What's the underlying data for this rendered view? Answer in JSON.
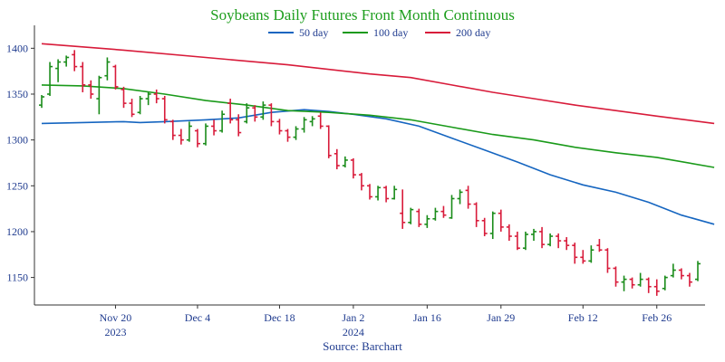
{
  "chart_data": {
    "type": "ohlc",
    "title": "Soybeans Daily Futures Front Month Continuous",
    "source": "Source: Barchart",
    "ylim": [
      1120,
      1425
    ],
    "yticks": [
      1150,
      1200,
      1250,
      1300,
      1350,
      1400
    ],
    "grid": false,
    "legend_position": "top-center",
    "x_ticks": [
      {
        "label": "Nov 20",
        "sub": "2023",
        "index": 9
      },
      {
        "label": "Dec 4",
        "sub": "",
        "index": 19
      },
      {
        "label": "Dec 18",
        "sub": "",
        "index": 29
      },
      {
        "label": "Jan 2",
        "sub": "2024",
        "index": 38
      },
      {
        "label": "Jan 16",
        "sub": "",
        "index": 47
      },
      {
        "label": "Jan 29",
        "sub": "",
        "index": 56
      },
      {
        "label": "Feb 12",
        "sub": "",
        "index": 66
      },
      {
        "label": "Feb 26",
        "sub": "",
        "index": 75
      }
    ],
    "colors": {
      "up": "#1a8c1a",
      "down": "#d81b3a"
    },
    "ohlc": [
      [
        1338,
        1349,
        1335,
        1347
      ],
      [
        1350,
        1385,
        1348,
        1380
      ],
      [
        1378,
        1388,
        1363,
        1385
      ],
      [
        1385,
        1392,
        1380,
        1390
      ],
      [
        1393,
        1398,
        1375,
        1380
      ],
      [
        1380,
        1385,
        1352,
        1360
      ],
      [
        1360,
        1365,
        1345,
        1350
      ],
      [
        1345,
        1370,
        1328,
        1368
      ],
      [
        1370,
        1390,
        1365,
        1385
      ],
      [
        1380,
        1382,
        1355,
        1358
      ],
      [
        1355,
        1358,
        1335,
        1340
      ],
      [
        1340,
        1345,
        1325,
        1328
      ],
      [
        1330,
        1348,
        1328,
        1345
      ],
      [
        1345,
        1352,
        1338,
        1350
      ],
      [
        1350,
        1355,
        1340,
        1345
      ],
      [
        1345,
        1348,
        1318,
        1322
      ],
      [
        1320,
        1322,
        1300,
        1305
      ],
      [
        1305,
        1312,
        1295,
        1300
      ],
      [
        1300,
        1320,
        1298,
        1315
      ],
      [
        1310,
        1312,
        1292,
        1296
      ],
      [
        1296,
        1318,
        1294,
        1315
      ],
      [
        1315,
        1322,
        1305,
        1310
      ],
      [
        1310,
        1332,
        1308,
        1328
      ],
      [
        1340,
        1345,
        1318,
        1322
      ],
      [
        1322,
        1328,
        1304,
        1308
      ],
      [
        1320,
        1340,
        1318,
        1335
      ],
      [
        1335,
        1338,
        1320,
        1325
      ],
      [
        1325,
        1342,
        1322,
        1338
      ],
      [
        1338,
        1340,
        1315,
        1320
      ],
      [
        1320,
        1323,
        1306,
        1310
      ],
      [
        1310,
        1312,
        1298,
        1303
      ],
      [
        1303,
        1315,
        1300,
        1312
      ],
      [
        1312,
        1325,
        1308,
        1322
      ],
      [
        1320,
        1326,
        1315,
        1323
      ],
      [
        1326,
        1330,
        1312,
        1315
      ],
      [
        1315,
        1316,
        1280,
        1283
      ],
      [
        1285,
        1290,
        1268,
        1272
      ],
      [
        1272,
        1282,
        1270,
        1278
      ],
      [
        1278,
        1280,
        1258,
        1262
      ],
      [
        1262,
        1264,
        1245,
        1250
      ],
      [
        1250,
        1252,
        1235,
        1238
      ],
      [
        1238,
        1250,
        1234,
        1248
      ],
      [
        1248,
        1250,
        1232,
        1236
      ],
      [
        1236,
        1250,
        1235,
        1246
      ],
      [
        1220,
        1246,
        1203,
        1210
      ],
      [
        1210,
        1226,
        1208,
        1224
      ],
      [
        1222,
        1225,
        1205,
        1208
      ],
      [
        1208,
        1218,
        1204,
        1214
      ],
      [
        1214,
        1226,
        1212,
        1222
      ],
      [
        1222,
        1228,
        1215,
        1218
      ],
      [
        1215,
        1240,
        1214,
        1236
      ],
      [
        1236,
        1246,
        1230,
        1243
      ],
      [
        1245,
        1250,
        1225,
        1230
      ],
      [
        1230,
        1232,
        1205,
        1212
      ],
      [
        1212,
        1215,
        1195,
        1198
      ],
      [
        1198,
        1222,
        1192,
        1220
      ],
      [
        1220,
        1224,
        1200,
        1205
      ],
      [
        1205,
        1208,
        1190,
        1195
      ],
      [
        1195,
        1200,
        1180,
        1182
      ],
      [
        1182,
        1200,
        1180,
        1197
      ],
      [
        1197,
        1203,
        1190,
        1200
      ],
      [
        1200,
        1205,
        1182,
        1186
      ],
      [
        1186,
        1198,
        1184,
        1195
      ],
      [
        1195,
        1198,
        1182,
        1190
      ],
      [
        1190,
        1194,
        1180,
        1185
      ],
      [
        1185,
        1188,
        1165,
        1172
      ],
      [
        1172,
        1180,
        1165,
        1168
      ],
      [
        1168,
        1185,
        1166,
        1180
      ],
      [
        1185,
        1192,
        1178,
        1180
      ],
      [
        1180,
        1182,
        1155,
        1160
      ],
      [
        1160,
        1162,
        1140,
        1145
      ],
      [
        1145,
        1152,
        1135,
        1148
      ],
      [
        1148,
        1150,
        1138,
        1142
      ],
      [
        1142,
        1155,
        1140,
        1148
      ],
      [
        1148,
        1150,
        1133,
        1140
      ],
      [
        1140,
        1148,
        1130,
        1135
      ],
      [
        1138,
        1152,
        1136,
        1150
      ],
      [
        1152,
        1165,
        1150,
        1158
      ],
      [
        1158,
        1160,
        1148,
        1152
      ],
      [
        1152,
        1155,
        1140,
        1145
      ],
      [
        1148,
        1168,
        1146,
        1165
      ]
    ],
    "series": [
      {
        "name": "50 day",
        "color": "#1565c0",
        "points": [
          [
            0,
            1318
          ],
          [
            5,
            1319
          ],
          [
            10,
            1320
          ],
          [
            12,
            1319
          ],
          [
            15,
            1320
          ],
          [
            20,
            1322
          ],
          [
            24,
            1324
          ],
          [
            28,
            1330
          ],
          [
            32,
            1333
          ],
          [
            35,
            1331
          ],
          [
            38,
            1328
          ],
          [
            42,
            1323
          ],
          [
            46,
            1315
          ],
          [
            50,
            1302
          ],
          [
            54,
            1289
          ],
          [
            58,
            1276
          ],
          [
            62,
            1262
          ],
          [
            66,
            1251
          ],
          [
            70,
            1243
          ],
          [
            74,
            1232
          ],
          [
            78,
            1218
          ],
          [
            82,
            1208
          ]
        ]
      },
      {
        "name": "100 day",
        "color": "#1a9a1a",
        "points": [
          [
            0,
            1360
          ],
          [
            5,
            1359
          ],
          [
            10,
            1356
          ],
          [
            15,
            1350
          ],
          [
            20,
            1343
          ],
          [
            25,
            1338
          ],
          [
            30,
            1332
          ],
          [
            35,
            1330
          ],
          [
            40,
            1327
          ],
          [
            45,
            1322
          ],
          [
            50,
            1314
          ],
          [
            55,
            1306
          ],
          [
            60,
            1300
          ],
          [
            65,
            1292
          ],
          [
            70,
            1286
          ],
          [
            75,
            1281
          ],
          [
            82,
            1270
          ]
        ]
      },
      {
        "name": "200 day",
        "color": "#d81b3a",
        "points": [
          [
            0,
            1405
          ],
          [
            10,
            1398
          ],
          [
            20,
            1390
          ],
          [
            30,
            1382
          ],
          [
            40,
            1372
          ],
          [
            45,
            1368
          ],
          [
            50,
            1360
          ],
          [
            55,
            1352
          ],
          [
            60,
            1345
          ],
          [
            65,
            1338
          ],
          [
            70,
            1332
          ],
          [
            75,
            1326
          ],
          [
            82,
            1318
          ]
        ]
      }
    ]
  }
}
